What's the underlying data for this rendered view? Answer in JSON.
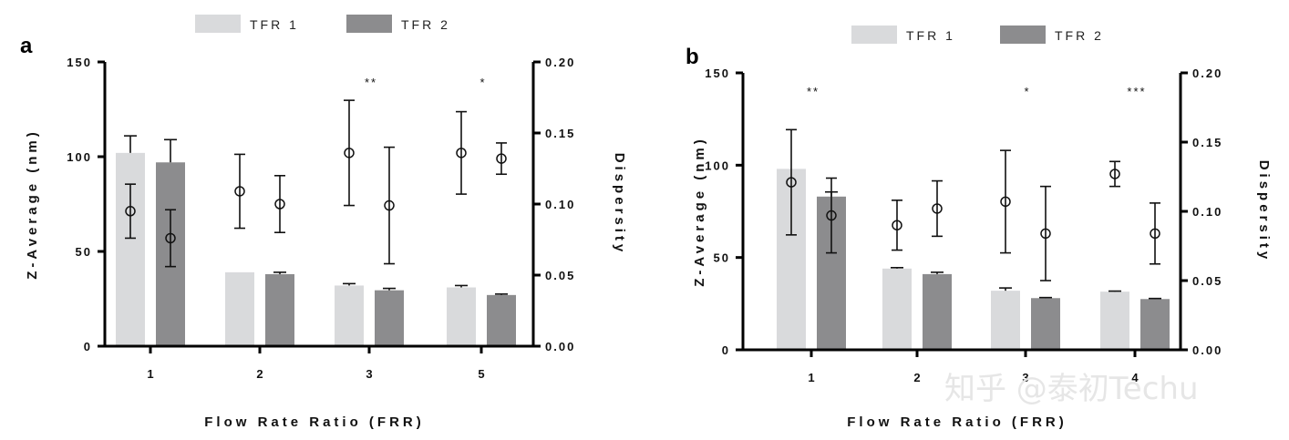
{
  "chart_data": [
    {
      "type": "bar",
      "panel_label": "a",
      "categories": [
        "1",
        "2",
        "3",
        "5"
      ],
      "xlabel": "Flow Rate Ratio (FRR)",
      "ylabel": "Z-Average (nm)",
      "y2label": "Dispersity",
      "ylim": [
        0,
        150
      ],
      "y2lim": [
        0,
        0.2
      ],
      "yticks": [
        "0",
        "50",
        "100",
        "150"
      ],
      "y2ticks": [
        "0.00",
        "0.05",
        "0.10",
        "0.15",
        "0.20"
      ],
      "legend_position": "top",
      "series": [
        {
          "name": "TFR 1",
          "color": "#d9dadc",
          "values": [
            102,
            39,
            32,
            31
          ],
          "errors": [
            9,
            0,
            1,
            1
          ]
        },
        {
          "name": "TFR 2",
          "color": "#8c8c8e",
          "values": [
            97,
            38,
            29.5,
            27
          ],
          "errors": [
            12,
            1,
            1,
            0.5
          ]
        }
      ],
      "dispersity": [
        {
          "series": "TFR 1",
          "values": [
            0.095,
            0.109,
            0.136,
            0.136
          ],
          "errors": [
            0.019,
            0.026,
            0.037,
            0.029
          ]
        },
        {
          "series": "TFR 2",
          "values": [
            0.076,
            0.1,
            0.099,
            0.132
          ],
          "errors": [
            0.02,
            0.02,
            0.041,
            0.011
          ]
        }
      ],
      "significance": [
        "",
        "",
        "**",
        "*"
      ]
    },
    {
      "type": "bar",
      "panel_label": "b",
      "categories": [
        "1",
        "2",
        "3",
        "4"
      ],
      "xlabel": "Flow Rate Ratio (FRR)",
      "ylabel": "Z-Average (nm)",
      "y2label": "Dispersity",
      "ylim": [
        0,
        150
      ],
      "y2lim": [
        0,
        0.2
      ],
      "yticks": [
        "0",
        "50",
        "100",
        "150"
      ],
      "y2ticks": [
        "0.00",
        "0.05",
        "0.10",
        "0.15",
        "0.20"
      ],
      "legend_position": "top",
      "series": [
        {
          "name": "TFR 1",
          "color": "#d9dadc",
          "values": [
            98,
            44,
            32,
            31.5
          ],
          "errors": [
            0,
            0.5,
            1.5,
            0.3
          ]
        },
        {
          "name": "TFR 2",
          "color": "#8c8c8e",
          "values": [
            83,
            41,
            28,
            27.5
          ],
          "errors": [
            2.5,
            1,
            0.3,
            0.3
          ]
        }
      ],
      "dispersity": [
        {
          "series": "TFR 1",
          "values": [
            0.121,
            0.09,
            0.107,
            0.127
          ],
          "errors": [
            0.038,
            0.018,
            0.037,
            0.009
          ]
        },
        {
          "series": "TFR 2",
          "values": [
            0.097,
            0.102,
            0.084,
            0.084
          ],
          "errors": [
            0.027,
            0.02,
            0.034,
            0.022
          ]
        }
      ],
      "significance": [
        "**",
        "",
        "*",
        "***"
      ]
    }
  ],
  "watermark": "知乎 @泰初Techu"
}
